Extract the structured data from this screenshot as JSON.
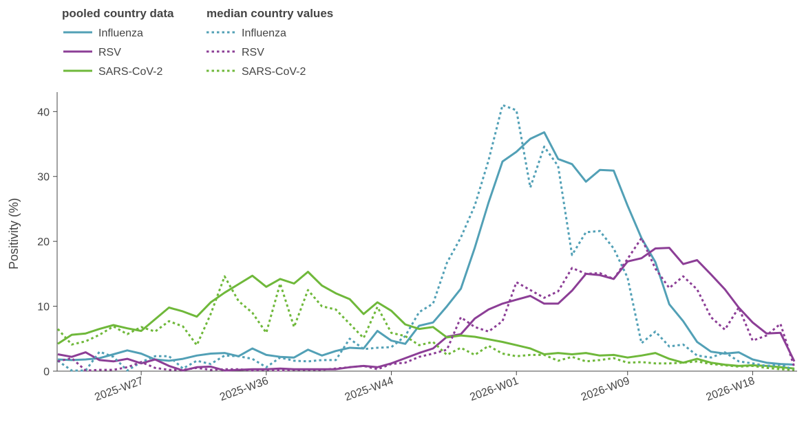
{
  "legend": {
    "pooled_title": "pooled country data",
    "median_title": "median country values",
    "pooled_items": [
      "Influenza",
      "RSV",
      "SARS-CoV-2"
    ],
    "median_items": [
      "Influenza",
      "RSV",
      "SARS-CoV-2"
    ]
  },
  "colors": {
    "Influenza": "#52a0b6",
    "RSV": "#8c3e96",
    "SARS-CoV-2": "#6fb83a",
    "axis": "#444444"
  },
  "chart_data": {
    "type": "line",
    "ylabel": "Positivity (%)",
    "xlabel": "",
    "ylim": [
      0,
      43
    ],
    "yticks": [
      0,
      10,
      20,
      30,
      40
    ],
    "x_ticks": [
      {
        "index": 6,
        "label": "2025-W27"
      },
      {
        "index": 15,
        "label": "2025-W36"
      },
      {
        "index": 24,
        "label": "2025-W44"
      },
      {
        "index": 33,
        "label": "2026-W01"
      },
      {
        "index": 41,
        "label": "2026-W09"
      },
      {
        "index": 50,
        "label": "2026-W18"
      }
    ],
    "x_count": 54,
    "series": [
      {
        "name": "Influenza",
        "style": "pooled",
        "values": [
          1.8,
          1.7,
          1.8,
          2,
          2.6,
          3.2,
          2.7,
          1.8,
          1.6,
          1.9,
          2.4,
          2.7,
          2.8,
          2.3,
          3.5,
          2.5,
          2.2,
          2.1,
          3.3,
          2.4,
          3.1,
          3.6,
          3.5,
          6.2,
          4.7,
          4.2,
          7,
          7.5,
          10,
          12.7,
          19,
          26,
          32.3,
          33.8,
          35.8,
          36.8,
          32.7,
          31.9,
          29.2,
          31,
          30.9,
          25.5,
          20.5,
          16.8,
          10.3,
          7.7,
          4.5,
          3,
          2.7,
          2.9,
          1.8,
          1.3,
          1.1,
          1
        ]
      },
      {
        "name": "RSV",
        "style": "pooled",
        "values": [
          2.6,
          2.2,
          2.9,
          1.7,
          1.5,
          1.9,
          1.2,
          1.8,
          0.8,
          0.1,
          0.6,
          0.7,
          0.1,
          0.2,
          0.3,
          0.3,
          0.4,
          0.3,
          0.3,
          0.3,
          0.3,
          0.6,
          0.8,
          0.6,
          1.2,
          2,
          2.8,
          3.5,
          5.3,
          5.7,
          8.1,
          9.5,
          10.4,
          11,
          11.6,
          10.4,
          10.4,
          12.4,
          15,
          14.8,
          14.2,
          16.9,
          17.4,
          18.9,
          19,
          16.5,
          17.1,
          14.9,
          12.6,
          9.8,
          7.5,
          5.8,
          5.9,
          1.5
        ]
      },
      {
        "name": "SARS-CoV-2",
        "style": "pooled",
        "values": [
          4.2,
          5.6,
          5.8,
          6.5,
          7.1,
          6.6,
          6.2,
          8,
          9.8,
          9.2,
          8.4,
          10.6,
          12.1,
          13.4,
          14.7,
          13,
          14.2,
          13.5,
          15.3,
          13.2,
          12,
          11.1,
          8.8,
          10.6,
          9.3,
          7.2,
          6.5,
          6.8,
          5.2,
          5.5,
          5.3,
          4.9,
          4.5,
          4,
          3.5,
          2.6,
          2.8,
          2.6,
          2.8,
          2.4,
          2.5,
          2.1,
          2.4,
          2.8,
          1.9,
          1.3,
          1.9,
          1.3,
          1,
          0.8,
          0.9,
          0.8,
          0.6,
          0.4
        ]
      },
      {
        "name": "Influenza",
        "style": "median",
        "values": [
          1.6,
          0.1,
          0.1,
          3,
          2.2,
          0.1,
          1.4,
          2.3,
          2.3,
          0.4,
          1.6,
          1.1,
          2.4,
          2.3,
          1.9,
          0.6,
          2.1,
          1.6,
          1.5,
          1.7,
          1.7,
          5,
          3.4,
          3.6,
          3.7,
          5.4,
          9.1,
          10.4,
          16.7,
          20.6,
          25.5,
          32.5,
          41,
          40.2,
          28.3,
          34.6,
          31.6,
          17.9,
          21.4,
          21.6,
          18.9,
          14.4,
          4.3,
          6.1,
          3.8,
          4.1,
          2.4,
          2.1,
          2.9,
          1.5,
          1.2,
          0.8,
          1,
          0.2
        ]
      },
      {
        "name": "RSV",
        "style": "median",
        "values": [
          1.5,
          2,
          0.1,
          0.2,
          0.2,
          0.6,
          1.4,
          0.5,
          0.2,
          0.2,
          0.5,
          0.2,
          0.3,
          0.3,
          0.1,
          0.2,
          0.1,
          0.2,
          0.2,
          0.2,
          0.4,
          0.6,
          0.8,
          0.3,
          1.1,
          1.3,
          2.2,
          2.7,
          3.3,
          8.3,
          6.8,
          6.1,
          7.7,
          13.7,
          12.5,
          11.3,
          12.3,
          15.9,
          15,
          15.1,
          14.2,
          17.3,
          20.5,
          15.8,
          12.8,
          14.6,
          12.6,
          8.3,
          6.4,
          9.8,
          4.7,
          5.5,
          7.3,
          0.6
        ]
      },
      {
        "name": "SARS-CoV-2",
        "style": "median",
        "values": [
          6.5,
          4.1,
          4.6,
          5.6,
          6.9,
          5.7,
          6.8,
          6.1,
          7.7,
          6.9,
          4,
          8.8,
          14.6,
          10.8,
          9,
          5.9,
          13.5,
          6.8,
          12.5,
          10,
          9.5,
          7.3,
          5.1,
          9.9,
          5.9,
          5.4,
          4,
          4.5,
          2.5,
          3.6,
          2.5,
          3.9,
          2.7,
          2.3,
          2.5,
          2.5,
          1.6,
          2.2,
          1.5,
          1.7,
          2,
          1.3,
          1.4,
          1.2,
          1.2,
          1.3,
          1.5,
          1.1,
          0.9,
          0.7,
          0.8,
          0.5,
          0.3,
          0.2
        ]
      }
    ]
  }
}
